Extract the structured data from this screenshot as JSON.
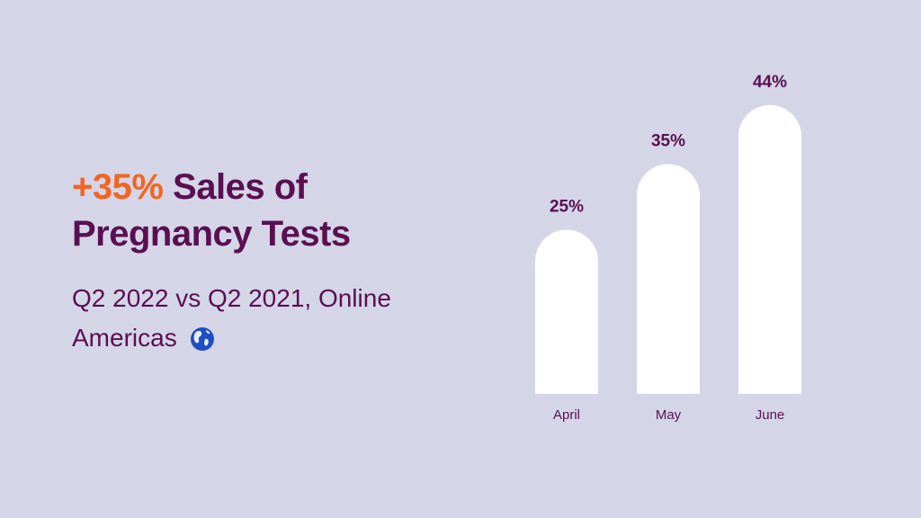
{
  "chart_data": {
    "type": "bar",
    "title_highlight": "+35%",
    "title": "Sales of Pregnancy Tests",
    "subtitle": "Q2 2022 vs Q2 2021, Online Americas",
    "categories": [
      "April",
      "May",
      "June"
    ],
    "values": [
      25,
      35,
      44
    ],
    "value_labels": [
      "25%",
      "35%",
      "44%"
    ],
    "color": "#ffffff",
    "title_color": "#5a0f50",
    "highlight_color": "#f26522"
  }
}
